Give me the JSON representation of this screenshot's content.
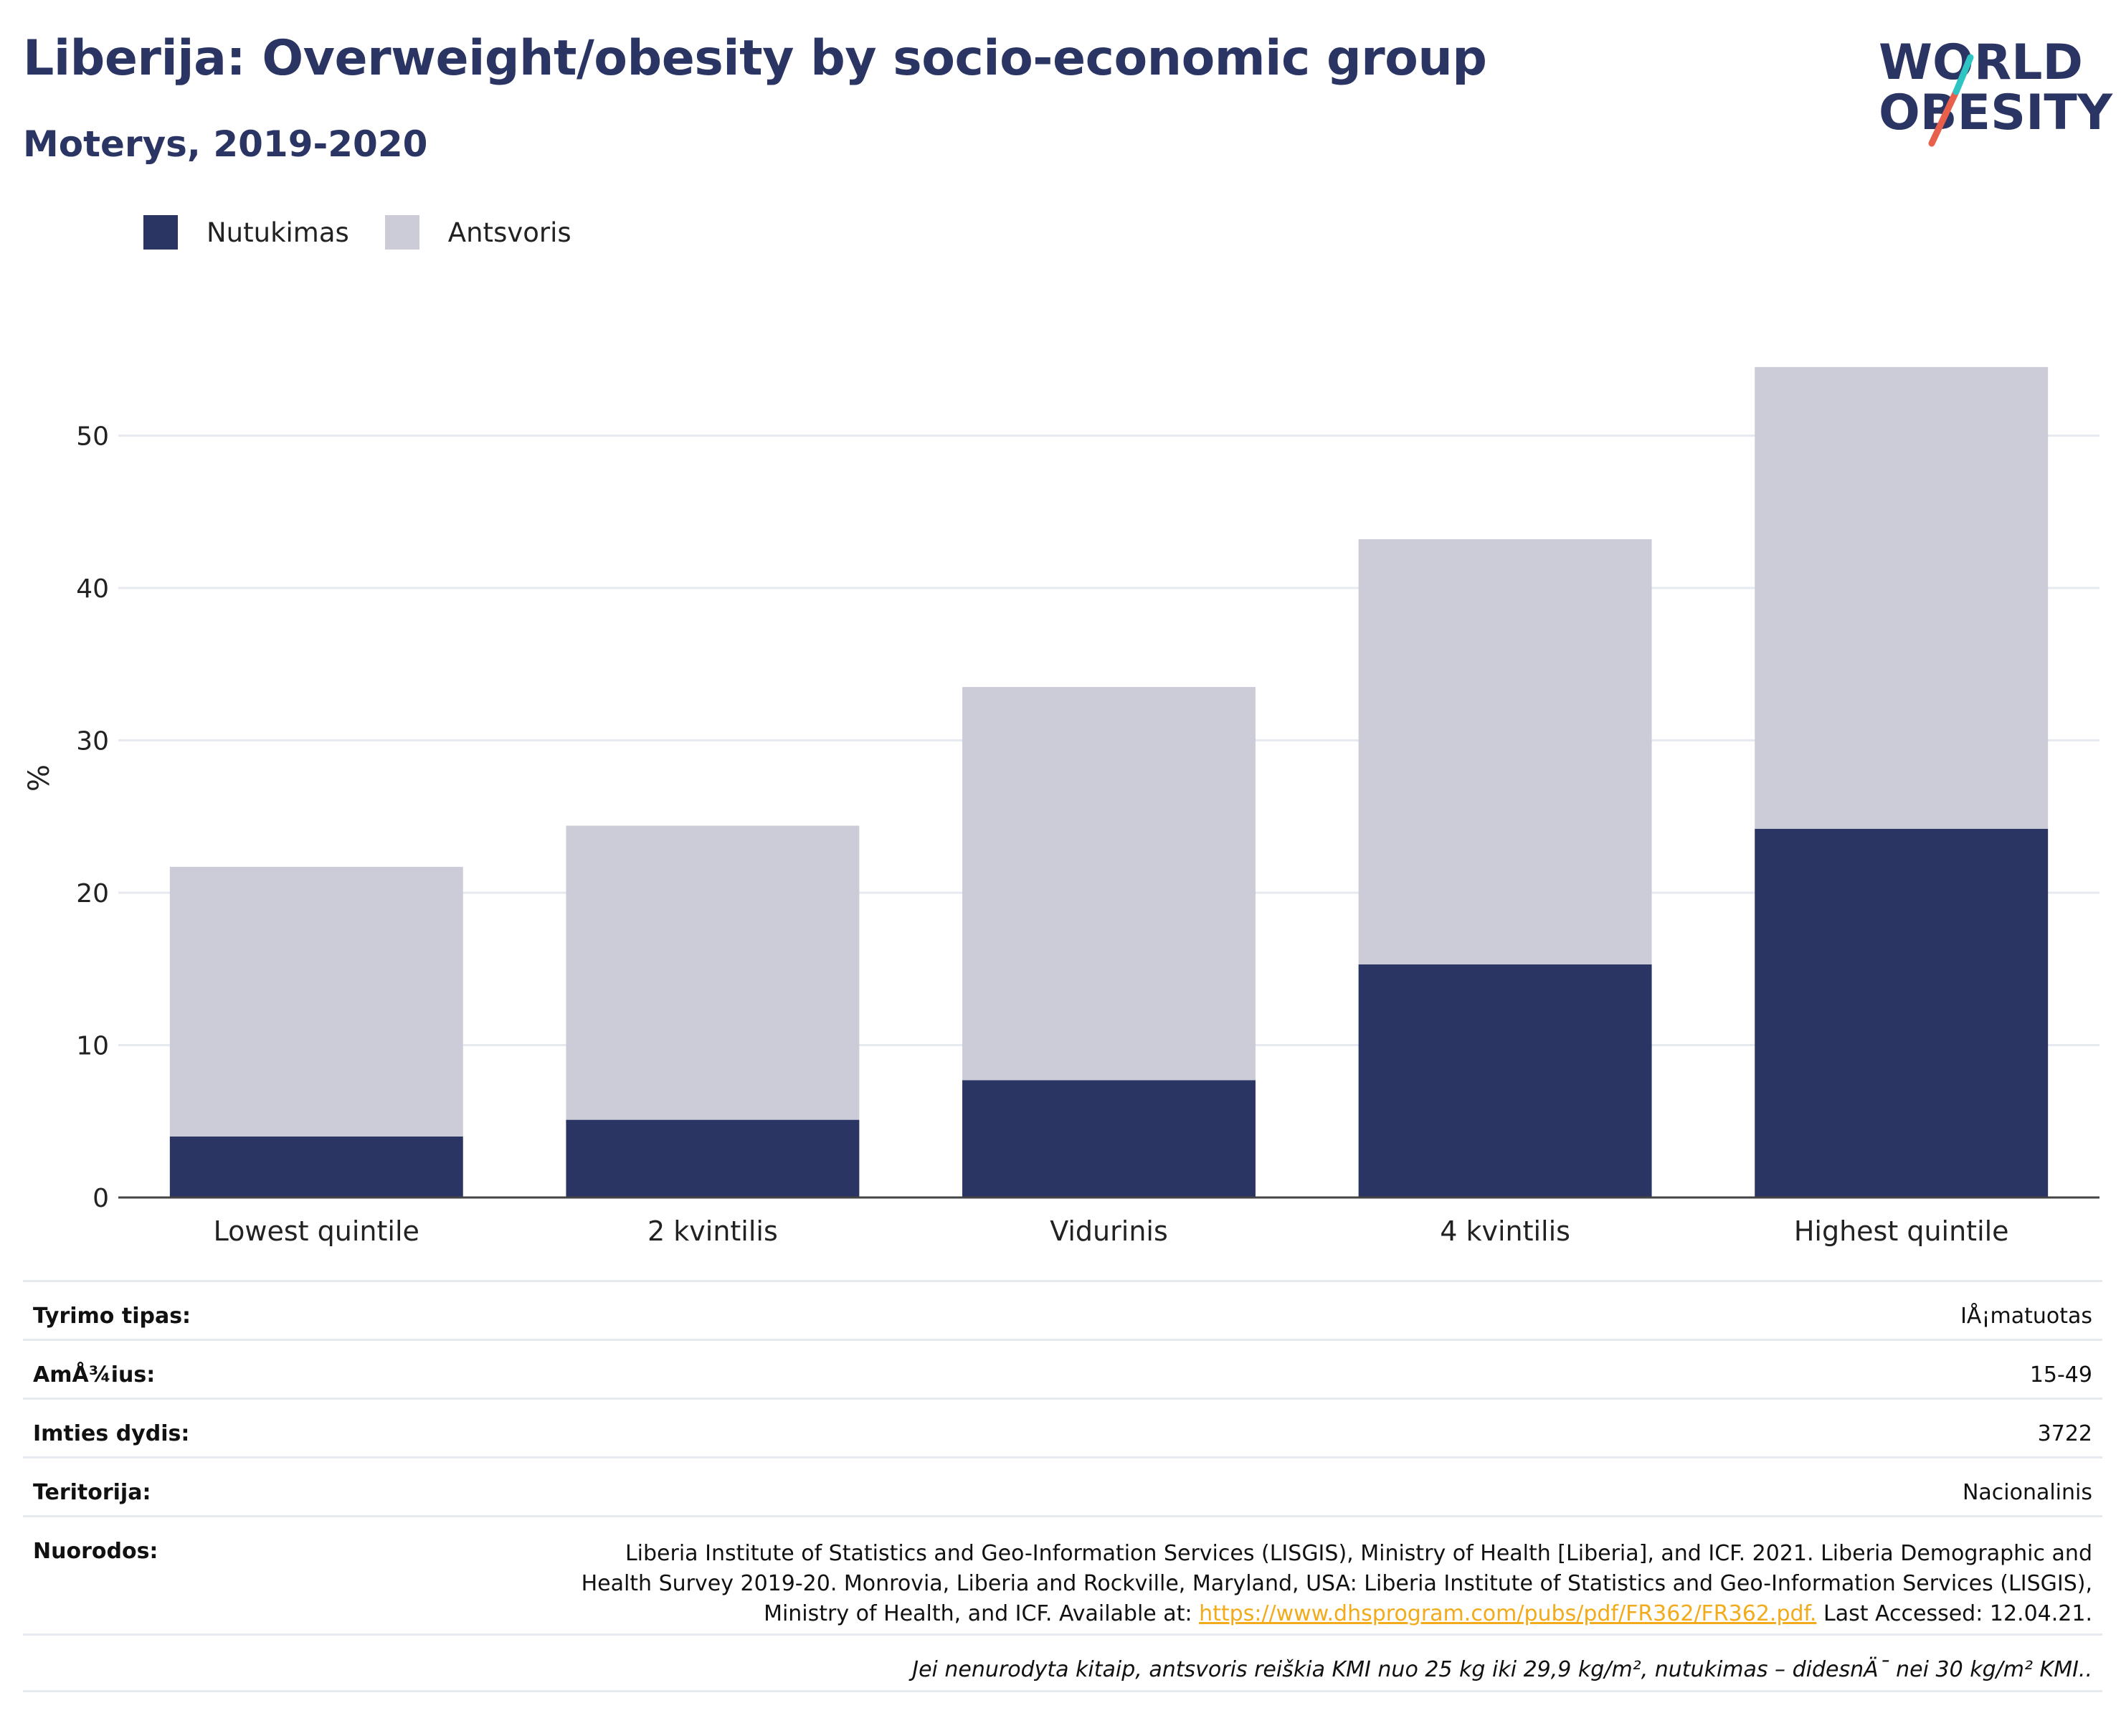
{
  "header": {
    "title": "Liberija: Overweight/obesity by socio-economic group",
    "subtitle": "Moterys, 2019-2020"
  },
  "logo": {
    "line1": "WORLD",
    "line2": "OBESITY",
    "slash_colors": [
      "#2ec4c4",
      "#e8604c"
    ],
    "text_color": "#2b3563"
  },
  "colors": {
    "obesity": "#2b3563",
    "overweight": "#cbccd8",
    "grid": "#e6e9f0",
    "axis": "#444444"
  },
  "chart_data": {
    "type": "bar",
    "stacked": true,
    "categories": [
      "Lowest quintile",
      "2 kvintilis",
      "Vidurinis",
      "4 kvintilis",
      "Highest quintile"
    ],
    "series": [
      {
        "name": "Nutukimas",
        "values": [
          4.0,
          5.1,
          7.7,
          15.3,
          24.2
        ]
      },
      {
        "name": "Antsvoris",
        "values": [
          17.7,
          19.3,
          25.8,
          27.9,
          30.3
        ]
      }
    ],
    "ylabel": "%",
    "ylim": [
      0,
      56
    ],
    "yticks": [
      0,
      10,
      20,
      30,
      40,
      50
    ],
    "grid": true,
    "legend_position": "top-left"
  },
  "info": {
    "rows": [
      {
        "label": "Tyrimo tipas:",
        "value": "IÅ¡matuotas"
      },
      {
        "label": "AmÅ¾ius:",
        "value": "15-49"
      },
      {
        "label": "Imties dydis:",
        "value": "3722"
      },
      {
        "label": "Teritorija:",
        "value": "Nacionalinis"
      }
    ],
    "references_label": "Nuorodos:",
    "references_text_before": "Liberia Institute of Statistics and Geo-Information Services (LISGIS), Ministry of Health [Liberia], and ICF. 2021. Liberia Demographic and Health Survey 2019-20. Monrovia, Liberia and Rockville, Maryland, USA: Liberia Institute of Statistics and Geo-Information Services (LISGIS), Ministry of Health, and ICF. Available at: ",
    "references_link": "https://www.dhsprogram.com/pubs/pdf/FR362/FR362.pdf.",
    "references_text_after": " Last Accessed: 12.04.21.",
    "note": "Jei nenurodyta kitaip, antsvoris reiškia KMI nuo 25 kg iki 29,9 kg/m², nutukimas – didesnÄ¯ nei 30 kg/m² KMI.."
  }
}
